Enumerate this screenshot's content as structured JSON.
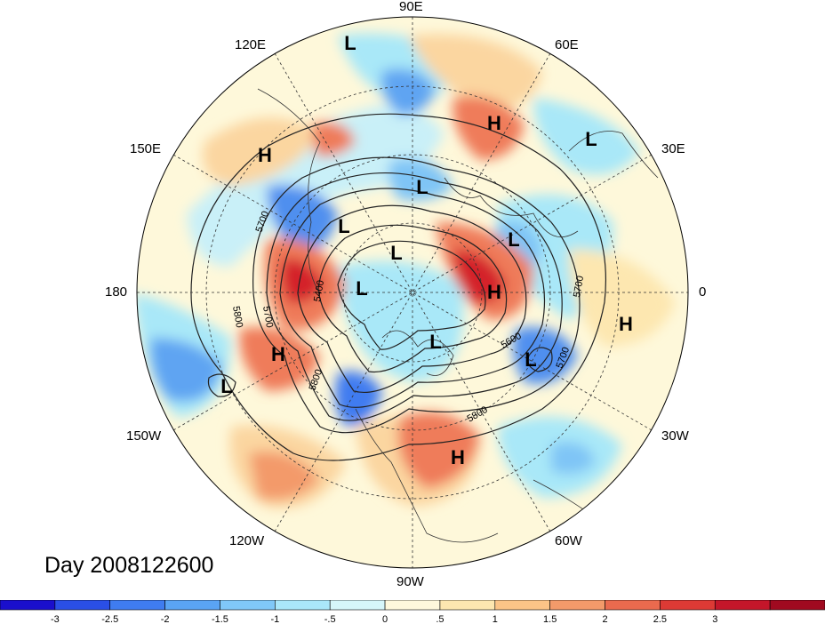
{
  "map": {
    "projection": "north-polar-stereographic",
    "longitude_labels": {
      "top": "90E",
      "upper_left_1": "120E",
      "upper_right_1": "60E",
      "upper_left_2": "150E",
      "upper_right_2": "30E",
      "left": "180",
      "right": "0",
      "lower_left_2": "150W",
      "lower_right_2": "30W",
      "lower_left_1": "120W",
      "lower_right_1": "60W",
      "bottom": "90W"
    },
    "pressure_centers": [
      {
        "type": "L"
      },
      {
        "type": "H"
      },
      {
        "type": "L"
      },
      {
        "type": "H"
      },
      {
        "type": "L"
      },
      {
        "type": "L"
      },
      {
        "type": "L"
      },
      {
        "type": "L"
      },
      {
        "type": "L"
      },
      {
        "type": "H"
      },
      {
        "type": "L"
      },
      {
        "type": "H"
      },
      {
        "type": "L"
      },
      {
        "type": "H"
      },
      {
        "type": "L"
      },
      {
        "type": "H"
      }
    ],
    "contour_labels": [
      "5700",
      "5800",
      "5700",
      "5400",
      "5800",
      "5600",
      "5700",
      "5700",
      "5800"
    ],
    "colors": {
      "neg_strong": "#1a2fd0",
      "neg_mid": "#4f8fef",
      "neg_light": "#a9e8f8",
      "neutral": "#fef8da",
      "pos_light": "#fbd6a0",
      "pos_mid": "#ef7c5a",
      "pos_strong": "#d4242b"
    }
  },
  "day_label": "Day 2008122600",
  "colorbar": {
    "colors": [
      "#1a0fcc",
      "#2a4fe6",
      "#3f7cf0",
      "#5aa4f4",
      "#80c8f8",
      "#aae7fa",
      "#d6f6fa",
      "#fef8dc",
      "#fde7b0",
      "#fbc487",
      "#f39a6a",
      "#ea6a4e",
      "#dd3a35",
      "#c4162a",
      "#a00a20"
    ],
    "tick_labels": [
      "-3",
      "-2.5",
      "-2",
      "-1.5",
      "-1",
      "-.5",
      "0",
      ".5",
      "1",
      "1.5",
      "2",
      "2.5",
      "3"
    ]
  }
}
